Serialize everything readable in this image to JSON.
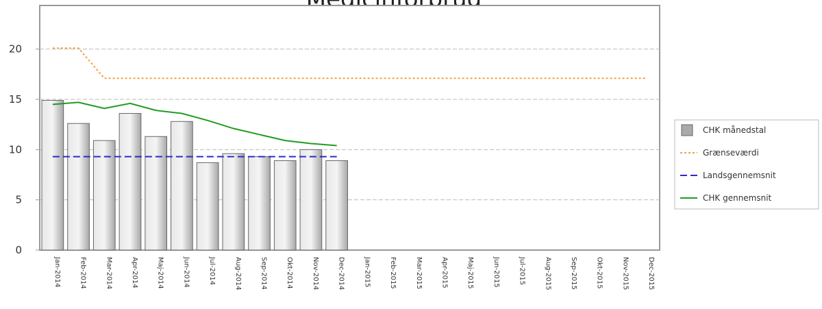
{
  "chart_data": {
    "type": "bar",
    "title": "Medicinforbrug",
    "categories": [
      "Jan-2014",
      "Feb-2014",
      "Mar-2014",
      "Apr-2014",
      "Maj-2014",
      "Jun-2014",
      "Jul-2014",
      "Aug-2014",
      "Sep-2014",
      "Okt-2014",
      "Nov-2014",
      "Dec-2014",
      "Jan-2015",
      "Feb-2015",
      "Mar-2015",
      "Apr-2015",
      "Maj-2015",
      "Jun-2015",
      "Jul-2015",
      "Aug-2015",
      "Sep-2015",
      "Okt-2015",
      "Nov-2015",
      "Dec-2015"
    ],
    "ylim": [
      0,
      24
    ],
    "yticks": [
      0,
      5,
      10,
      15,
      20
    ],
    "grid": true,
    "series": [
      {
        "name": "CHK månedstal",
        "type": "bar",
        "color": "#c4c4c4",
        "values": [
          14.9,
          12.6,
          10.9,
          13.6,
          11.3,
          12.8,
          8.7,
          9.6,
          9.3,
          8.9,
          10.0,
          8.9,
          null,
          null,
          null,
          null,
          null,
          null,
          null,
          null,
          null,
          null,
          null,
          null
        ]
      },
      {
        "name": "Grænseværdi",
        "type": "line",
        "color": "#f5a040",
        "dash": "3,3",
        "values": [
          20.1,
          20.1,
          17.1,
          17.1,
          17.1,
          17.1,
          17.1,
          17.1,
          17.1,
          17.1,
          17.1,
          17.1,
          17.1,
          17.1,
          17.1,
          17.1,
          17.1,
          17.1,
          17.1,
          17.1,
          17.1,
          17.1,
          17.1,
          17.1
        ]
      },
      {
        "name": "Landsgennemsnit",
        "type": "line",
        "color": "#2a2ad0",
        "dash": "10,5",
        "values": [
          9.3,
          9.3,
          9.3,
          9.3,
          9.3,
          9.3,
          9.3,
          9.3,
          9.3,
          9.3,
          9.3,
          9.3,
          null,
          null,
          null,
          null,
          null,
          null,
          null,
          null,
          null,
          null,
          null,
          null
        ]
      },
      {
        "name": "CHK gennemsnit",
        "type": "line",
        "color": "#229a22",
        "dash": "",
        "values": [
          14.5,
          14.7,
          14.1,
          14.6,
          13.9,
          13.6,
          12.9,
          12.1,
          11.5,
          10.9,
          10.6,
          10.4,
          null,
          null,
          null,
          null,
          null,
          null,
          null,
          null,
          null,
          null,
          null,
          null
        ]
      }
    ]
  }
}
